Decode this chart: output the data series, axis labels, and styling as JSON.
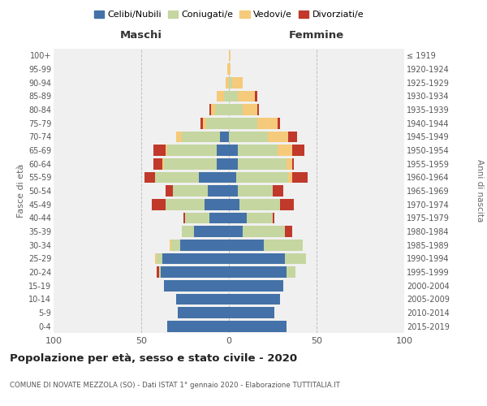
{
  "age_groups": [
    "0-4",
    "5-9",
    "10-14",
    "15-19",
    "20-24",
    "25-29",
    "30-34",
    "35-39",
    "40-44",
    "45-49",
    "50-54",
    "55-59",
    "60-64",
    "65-69",
    "70-74",
    "75-79",
    "80-84",
    "85-89",
    "90-94",
    "95-99",
    "100+"
  ],
  "birth_years": [
    "2015-2019",
    "2010-2014",
    "2005-2009",
    "2000-2004",
    "1995-1999",
    "1990-1994",
    "1985-1989",
    "1980-1984",
    "1975-1979",
    "1970-1974",
    "1965-1969",
    "1960-1964",
    "1955-1959",
    "1950-1954",
    "1945-1949",
    "1940-1944",
    "1935-1939",
    "1930-1934",
    "1925-1929",
    "1920-1924",
    "≤ 1919"
  ],
  "maschi": {
    "celibi": [
      35,
      29,
      30,
      37,
      39,
      38,
      28,
      20,
      11,
      14,
      12,
      17,
      7,
      7,
      5,
      0,
      0,
      0,
      0,
      0,
      0
    ],
    "coniugati": [
      0,
      0,
      0,
      0,
      1,
      3,
      5,
      7,
      14,
      22,
      20,
      25,
      30,
      28,
      22,
      13,
      8,
      3,
      0,
      0,
      0
    ],
    "vedovi": [
      0,
      0,
      0,
      0,
      0,
      1,
      1,
      0,
      0,
      0,
      0,
      0,
      1,
      1,
      3,
      2,
      2,
      4,
      2,
      1,
      0
    ],
    "divorziati": [
      0,
      0,
      0,
      0,
      1,
      0,
      0,
      0,
      1,
      8,
      4,
      6,
      5,
      7,
      0,
      1,
      1,
      0,
      0,
      0,
      0
    ]
  },
  "femmine": {
    "nubili": [
      33,
      26,
      29,
      31,
      33,
      32,
      20,
      8,
      10,
      6,
      5,
      4,
      5,
      5,
      0,
      0,
      0,
      0,
      0,
      0,
      0
    ],
    "coniugate": [
      0,
      0,
      0,
      0,
      5,
      12,
      22,
      24,
      15,
      23,
      20,
      30,
      28,
      23,
      22,
      16,
      8,
      5,
      2,
      0,
      0
    ],
    "vedove": [
      0,
      0,
      0,
      0,
      0,
      0,
      0,
      0,
      0,
      0,
      0,
      2,
      3,
      8,
      12,
      12,
      8,
      10,
      6,
      1,
      1
    ],
    "divorziate": [
      0,
      0,
      0,
      0,
      0,
      0,
      0,
      4,
      1,
      8,
      6,
      9,
      1,
      7,
      5,
      1,
      1,
      1,
      0,
      0,
      0
    ]
  },
  "colors": {
    "celibi": "#4472a8",
    "coniugati": "#c5d6a0",
    "vedovi": "#f5ca7a",
    "divorziati": "#c0392b"
  },
  "xlim": 100,
  "title": "Popolazione per età, sesso e stato civile - 2020",
  "subtitle": "COMUNE DI NOVATE MEZZOLA (SO) - Dati ISTAT 1° gennaio 2020 - Elaborazione TUTTITALIA.IT",
  "ylabel_left": "Fasce di età",
  "ylabel_right": "Anni di nascita",
  "xlabel_left": "Maschi",
  "xlabel_right": "Femmine",
  "bg_color": "#ffffff",
  "plot_bg": "#f0f0f0",
  "grid_color": "#cccccc"
}
